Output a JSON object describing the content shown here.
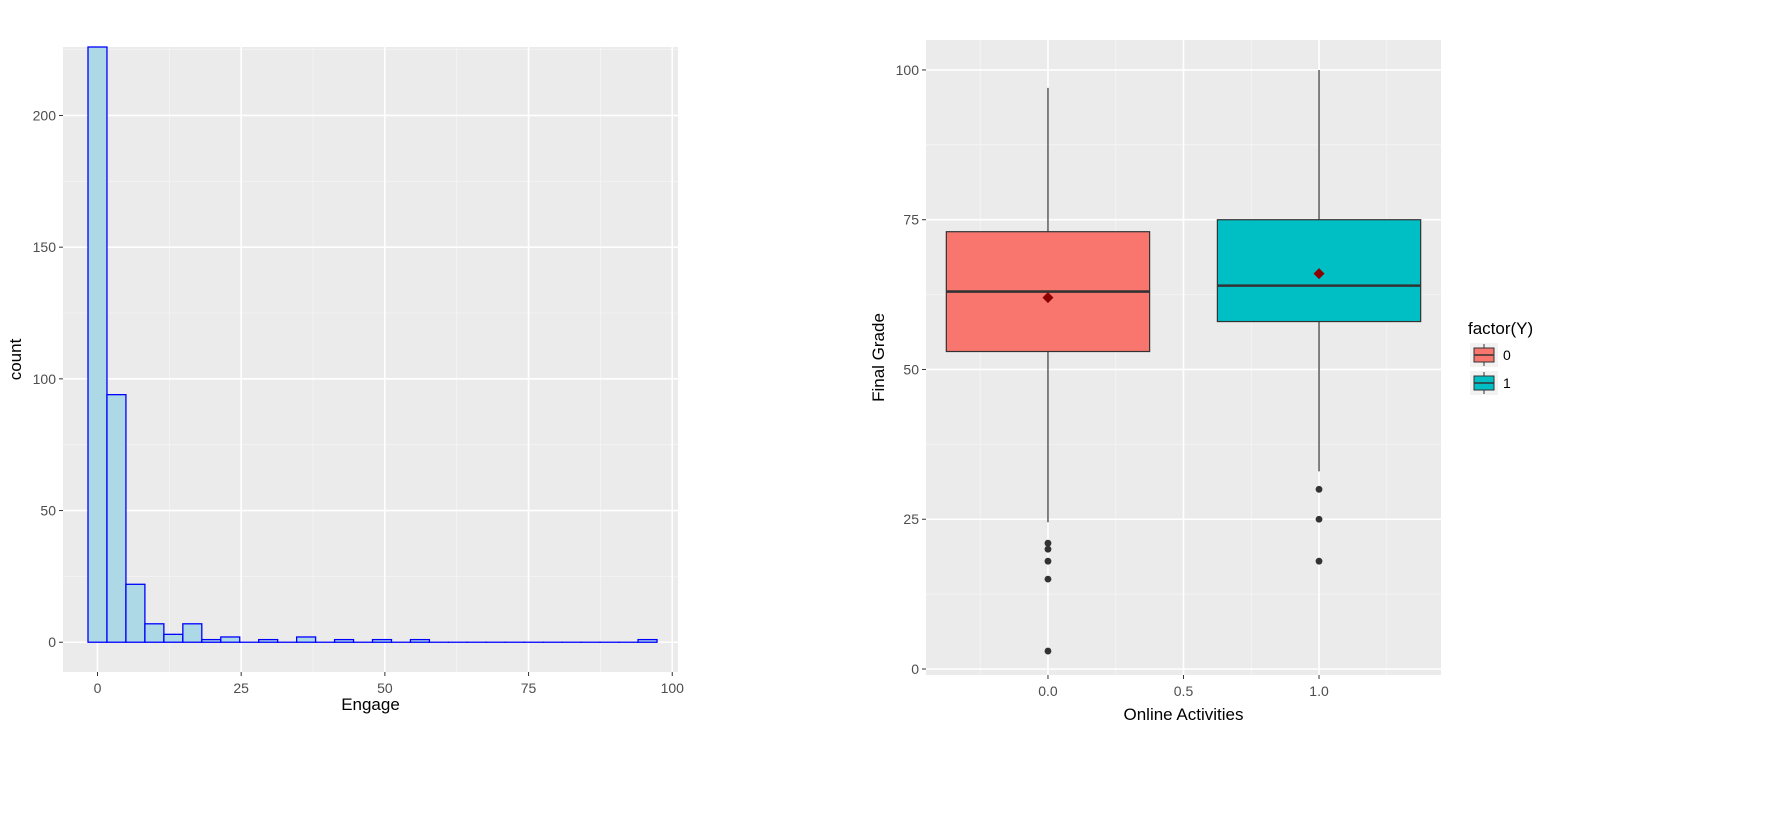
{
  "chart_data": [
    {
      "type": "histogram",
      "xlabel": "Engage",
      "ylabel": "count",
      "xlim": [
        -6,
        101
      ],
      "ylim": [
        -11.3,
        226
      ],
      "x_ticks": [
        0,
        25,
        50,
        75,
        100
      ],
      "y_ticks": [
        0,
        50,
        100,
        150,
        200
      ],
      "grid": true,
      "bar_color": "#ADD8E6",
      "bar_outline": "#0000FF",
      "bin_width": 3.3,
      "bins": [
        {
          "x": 0.0,
          "count": 226
        },
        {
          "x": 3.3,
          "count": 94
        },
        {
          "x": 6.6,
          "count": 22
        },
        {
          "x": 9.9,
          "count": 7
        },
        {
          "x": 13.2,
          "count": 3
        },
        {
          "x": 16.5,
          "count": 7
        },
        {
          "x": 19.8,
          "count": 1
        },
        {
          "x": 23.1,
          "count": 2
        },
        {
          "x": 26.4,
          "count": 0
        },
        {
          "x": 29.7,
          "count": 1
        },
        {
          "x": 33.0,
          "count": 0
        },
        {
          "x": 36.3,
          "count": 2
        },
        {
          "x": 39.6,
          "count": 0
        },
        {
          "x": 42.9,
          "count": 1
        },
        {
          "x": 46.2,
          "count": 0
        },
        {
          "x": 49.5,
          "count": 1
        },
        {
          "x": 52.8,
          "count": 0
        },
        {
          "x": 56.1,
          "count": 1
        },
        {
          "x": 59.4,
          "count": 0
        },
        {
          "x": 62.7,
          "count": 0
        },
        {
          "x": 66.0,
          "count": 0
        },
        {
          "x": 69.3,
          "count": 0
        },
        {
          "x": 72.6,
          "count": 0
        },
        {
          "x": 75.9,
          "count": 0
        },
        {
          "x": 79.2,
          "count": 0
        },
        {
          "x": 82.5,
          "count": 0
        },
        {
          "x": 85.8,
          "count": 0
        },
        {
          "x": 89.1,
          "count": 0
        },
        {
          "x": 92.4,
          "count": 0
        },
        {
          "x": 95.7,
          "count": 1
        }
      ]
    },
    {
      "type": "box",
      "xlabel": "Online Activities",
      "ylabel": "Final Grade",
      "xlim": [
        -0.45,
        1.45
      ],
      "ylim": [
        -1,
        105
      ],
      "x_ticks": [
        "0.0",
        "0.5",
        "1.0"
      ],
      "x_tick_values": [
        0,
        0.5,
        1
      ],
      "y_ticks": [
        0,
        25,
        50,
        75,
        100
      ],
      "grid": true,
      "legend": {
        "title": "factor(Y)",
        "position": "right",
        "entries": [
          {
            "label": "0",
            "color": "#F8766D"
          },
          {
            "label": "1",
            "color": "#00BFC4"
          }
        ]
      },
      "boxes": [
        {
          "x": 0,
          "group": "0",
          "color": "#F8766D",
          "whisker_low": 24.5,
          "q1": 53,
          "median": 63,
          "q3": 73,
          "whisker_high": 97,
          "mean": 62,
          "outliers": [
            21,
            20,
            18,
            15,
            3
          ]
        },
        {
          "x": 1,
          "group": "1",
          "color": "#00BFC4",
          "whisker_low": 33,
          "q1": 58,
          "median": 64,
          "q3": 75,
          "whisker_high": 100,
          "mean": 66,
          "outliers": [
            30,
            25,
            18
          ]
        }
      ],
      "mean_marker_color": "#8B0000",
      "box_width": 0.75
    }
  ]
}
